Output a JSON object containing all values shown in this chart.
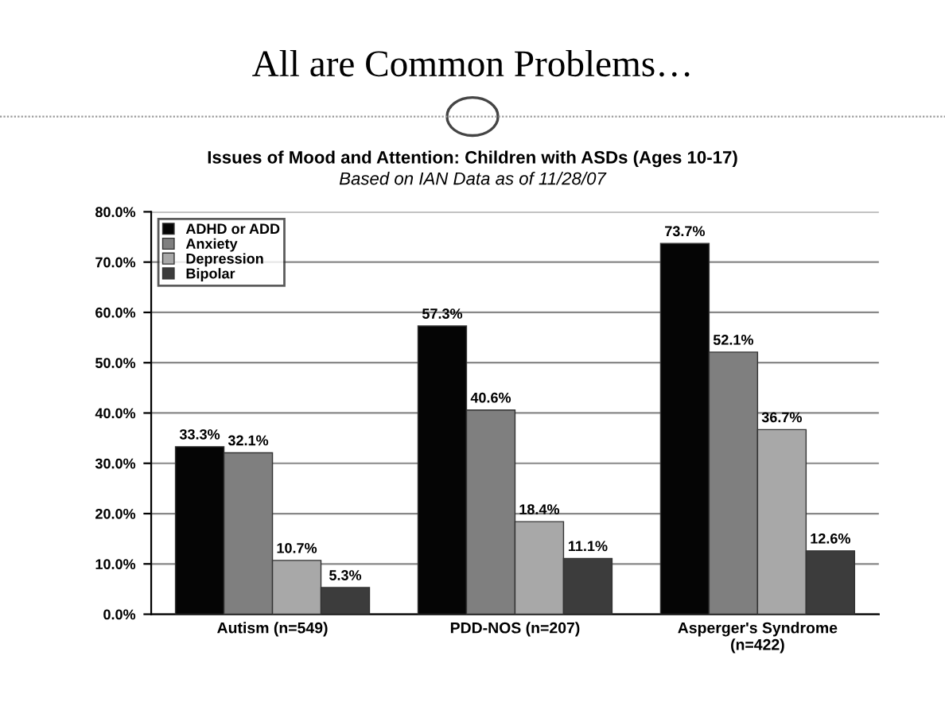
{
  "chart_data": {
    "type": "bar",
    "title": "All are Common Problems…",
    "subtitle": "Issues of Mood and Attention: Children with ASDs (Ages 10-17)",
    "annotations": [
      "Based on IAN Data as of 11/28/07"
    ],
    "categories": [
      "Autism (n=549)",
      "PDD-NOS (n=207)",
      "Asperger's Syndrome\n(n=422)"
    ],
    "series": [
      {
        "name": "ADHD or ADD",
        "color": "#050505",
        "values": [
          33.3,
          57.3,
          73.7
        ],
        "value_labels": [
          "33.3%",
          "57.3%",
          "73.7%"
        ]
      },
      {
        "name": "Anxiety",
        "color": "#7f7f7f",
        "values": [
          32.1,
          40.6,
          52.1
        ],
        "value_labels": [
          "32.1%",
          "40.6%",
          "52.1%"
        ]
      },
      {
        "name": "Depression",
        "color": "#a8a8a8",
        "values": [
          10.7,
          18.4,
          36.7
        ],
        "value_labels": [
          "10.7%",
          "18.4%",
          "36.7%"
        ]
      },
      {
        "name": "Bipolar",
        "color": "#3c3c3c",
        "values": [
          5.3,
          11.1,
          12.6
        ],
        "value_labels": [
          "5.3%",
          "11.1%",
          "12.6%"
        ]
      }
    ],
    "ylim": [
      0,
      80
    ],
    "yticks": [
      {
        "value": 0,
        "label": "0.0%"
      },
      {
        "value": 10,
        "label": "10.0%"
      },
      {
        "value": 20,
        "label": "20.0%"
      },
      {
        "value": 30,
        "label": "30.0%"
      },
      {
        "value": 40,
        "label": "40.0%"
      },
      {
        "value": 50,
        "label": "50.0%"
      },
      {
        "value": 60,
        "label": "60.0%"
      },
      {
        "value": 70,
        "label": "70.0%"
      },
      {
        "value": 80,
        "label": "80.0%"
      }
    ],
    "grid": "y",
    "legend": "top left"
  }
}
